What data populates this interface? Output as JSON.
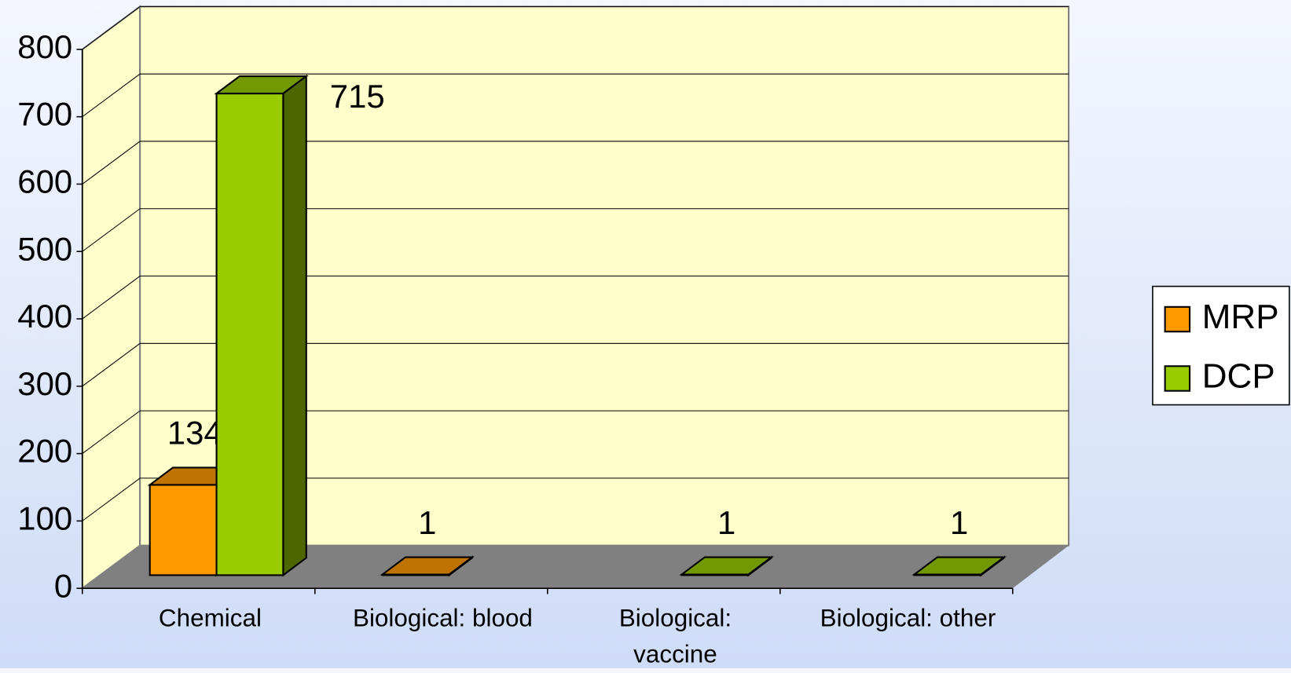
{
  "chart_data": {
    "type": "bar3d",
    "categories": [
      "Chemical",
      "Biological: blood",
      "Biological: vaccine",
      "Biological: other"
    ],
    "series": [
      {
        "name": "MRP",
        "color": "#ff9900",
        "values": [
          134,
          1,
          null,
          null
        ]
      },
      {
        "name": "DCP",
        "color": "#99cc00",
        "values": [
          715,
          null,
          1,
          1
        ]
      }
    ],
    "ylim": [
      0,
      800
    ],
    "yticks": [
      0,
      100,
      200,
      300,
      400,
      500,
      600,
      700,
      800
    ],
    "grid": true,
    "legend": "right"
  }
}
